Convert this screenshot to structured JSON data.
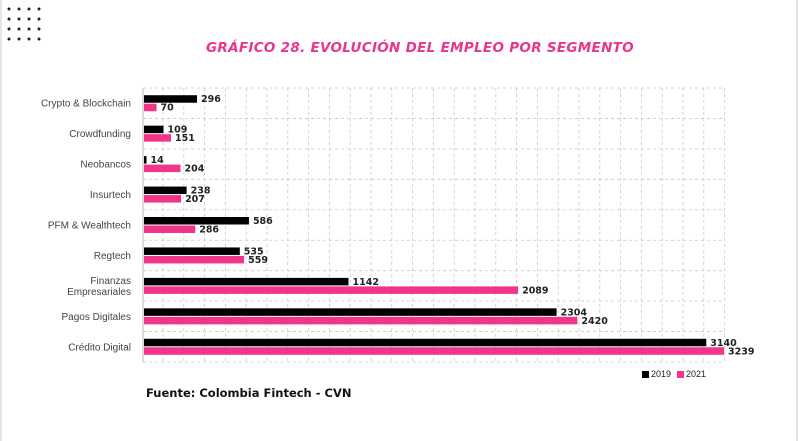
{
  "title": "GRÁFICO 28. EVOLUCIÓN DEL EMPLEO POR SEGMENTO",
  "source": "Fuente: Colombia Fintech - CVN",
  "colors": {
    "accent": "#e8368c",
    "series_2019": "#000000",
    "series_2021": "#f2358b"
  },
  "chart_data": {
    "type": "bar",
    "orientation": "horizontal",
    "categories": [
      "Crypto & Blockchain",
      "Crowdfunding",
      "Neobancos",
      "Insurtech",
      "PFM & Wealthtech",
      "Regtech",
      "Finanzas Empresariales",
      "Pagos Digitales",
      "Crédito Digital"
    ],
    "series": [
      {
        "name": "2019",
        "color": "#000000",
        "values": [
          296,
          109,
          14,
          238,
          586,
          535,
          1142,
          2304,
          3140
        ]
      },
      {
        "name": "2021",
        "color": "#f2358b",
        "values": [
          70,
          151,
          204,
          207,
          286,
          559,
          2089,
          2420,
          3239
        ]
      }
    ],
    "xlim": [
      0,
      3250
    ],
    "grid": true,
    "legend": "bottom-right",
    "title": "GRÁFICO 28. EVOLUCIÓN DEL EMPLEO POR SEGMENTO"
  }
}
